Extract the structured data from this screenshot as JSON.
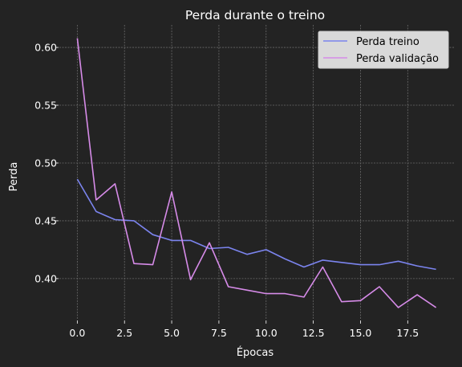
{
  "chart_data": {
    "type": "line",
    "title": "Perda durante o treino",
    "xlabel": "Épocas",
    "ylabel": "Perda",
    "xlim": [
      -0.95,
      19.95
    ],
    "ylim": [
      0.3645,
      0.6195
    ],
    "x_ticks": [
      0.0,
      2.5,
      5.0,
      7.5,
      10.0,
      12.5,
      15.0,
      17.5
    ],
    "x_tick_labels": [
      "0.0",
      "2.5",
      "5.0",
      "7.5",
      "10.0",
      "12.5",
      "15.0",
      "17.5"
    ],
    "y_ticks": [
      0.4,
      0.45,
      0.5,
      0.55,
      0.6
    ],
    "y_tick_labels": [
      "0.40",
      "0.45",
      "0.50",
      "0.55",
      "0.60"
    ],
    "grid": true,
    "legend_position": "top-right",
    "x": [
      0,
      1,
      2,
      3,
      4,
      5,
      6,
      7,
      8,
      9,
      10,
      11,
      12,
      13,
      14,
      15,
      16,
      17,
      18,
      19
    ],
    "series": [
      {
        "name": "Perda treino",
        "color": "#7b84ee",
        "values": [
          0.486,
          0.458,
          0.451,
          0.45,
          0.438,
          0.433,
          0.433,
          0.426,
          0.427,
          0.421,
          0.425,
          0.417,
          0.41,
          0.416,
          0.414,
          0.412,
          0.412,
          0.415,
          0.411,
          0.408
        ]
      },
      {
        "name": "Perda validação",
        "color": "#d68be8",
        "values": [
          0.608,
          0.468,
          0.482,
          0.413,
          0.412,
          0.475,
          0.399,
          0.431,
          0.393,
          0.39,
          0.387,
          0.387,
          0.384,
          0.41,
          0.38,
          0.381,
          0.393,
          0.375,
          0.386,
          0.375
        ]
      }
    ]
  }
}
